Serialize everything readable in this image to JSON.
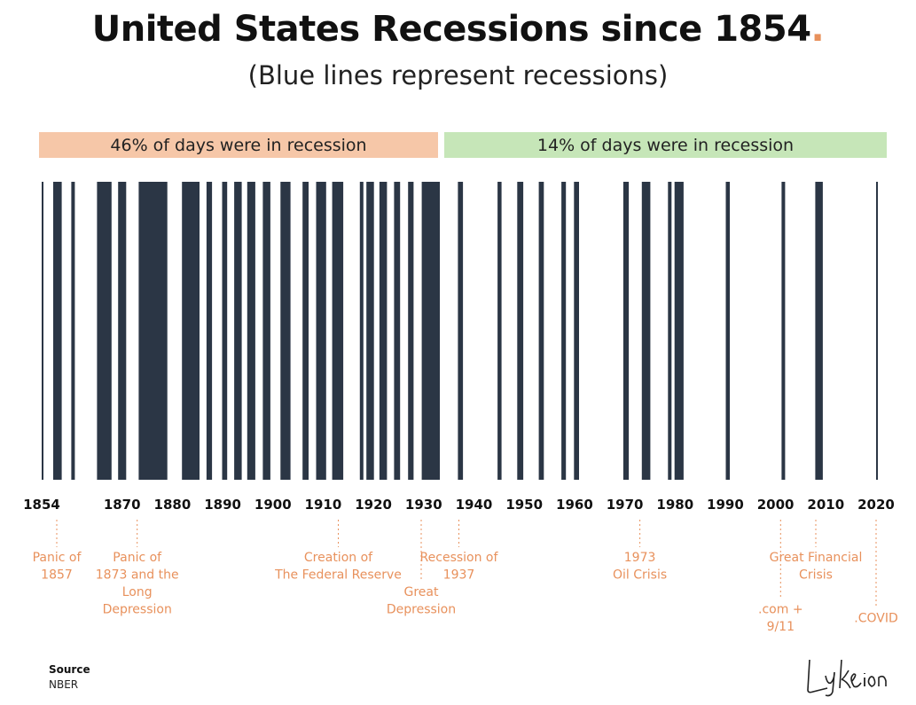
{
  "title_main": "United States Recessions since 1854",
  "title_dot": ".",
  "subtitle": "(Blue lines represent recessions)",
  "colors": {
    "bar": "#2b3645",
    "annotation": "#e8915c",
    "band_early": "#f6c7a8",
    "band_late": "#c6e6b8"
  },
  "bands": [
    {
      "label": "46% of days were in recession",
      "from": 1854,
      "to": 1933
    },
    {
      "label": "14% of days were in recession",
      "from": 1933,
      "to": 2020
    }
  ],
  "chart_data": {
    "type": "bar",
    "title": "United States Recessions since 1854",
    "subtitle": "(Blue lines represent recessions)",
    "xlabel": "",
    "ylabel": "",
    "xlim": [
      1854,
      2021
    ],
    "x_ticks": [
      1854,
      1870,
      1880,
      1890,
      1900,
      1910,
      1920,
      1930,
      1940,
      1950,
      1960,
      1970,
      1980,
      1990,
      2000,
      2010,
      2020
    ],
    "recessions": [
      {
        "start": 1854.0,
        "end": 1854.25
      },
      {
        "start": 1856.3,
        "end": 1858.0
      },
      {
        "start": 1859.9,
        "end": 1860.6
      },
      {
        "start": 1865.0,
        "end": 1867.9
      },
      {
        "start": 1869.2,
        "end": 1870.8
      },
      {
        "start": 1873.3,
        "end": 1879.0
      },
      {
        "start": 1881.9,
        "end": 1885.4
      },
      {
        "start": 1886.8,
        "end": 1887.9
      },
      {
        "start": 1889.9,
        "end": 1890.9
      },
      {
        "start": 1892.3,
        "end": 1893.8
      },
      {
        "start": 1894.9,
        "end": 1896.5
      },
      {
        "start": 1898.0,
        "end": 1899.5
      },
      {
        "start": 1901.5,
        "end": 1903.5
      },
      {
        "start": 1905.9,
        "end": 1907.1
      },
      {
        "start": 1908.6,
        "end": 1910.6
      },
      {
        "start": 1911.8,
        "end": 1914.0
      },
      {
        "start": 1917.3,
        "end": 1918.0
      },
      {
        "start": 1918.6,
        "end": 1920.1
      },
      {
        "start": 1921.2,
        "end": 1922.7
      },
      {
        "start": 1924.1,
        "end": 1925.3
      },
      {
        "start": 1926.9,
        "end": 1928.0
      },
      {
        "start": 1929.6,
        "end": 1933.2
      },
      {
        "start": 1936.8,
        "end": 1937.8
      },
      {
        "start": 1944.7,
        "end": 1945.5
      },
      {
        "start": 1948.6,
        "end": 1949.8
      },
      {
        "start": 1952.9,
        "end": 1953.9
      },
      {
        "start": 1957.4,
        "end": 1958.3
      },
      {
        "start": 1959.9,
        "end": 1960.9
      },
      {
        "start": 1969.7,
        "end": 1970.8
      },
      {
        "start": 1973.4,
        "end": 1975.1
      },
      {
        "start": 1978.6,
        "end": 1979.3
      },
      {
        "start": 1979.9,
        "end": 1981.7
      },
      {
        "start": 1990.1,
        "end": 1990.9
      },
      {
        "start": 2001.2,
        "end": 2001.9
      },
      {
        "start": 2007.9,
        "end": 2009.4
      },
      {
        "start": 2020.0,
        "end": 2020.2
      }
    ],
    "annotations": [
      {
        "year": 1857,
        "lines": [
          "Panic of",
          "1857"
        ],
        "line_offset": 0
      },
      {
        "year": 1873,
        "lines": [
          "Panic of",
          "1873 and the",
          "Long",
          "Depression"
        ],
        "line_offset": 0
      },
      {
        "year": 1913,
        "lines": [
          "Creation of",
          "The Federal Reserve"
        ],
        "line_offset": 0
      },
      {
        "year": 1929.5,
        "lines": [
          "Great",
          "Depression"
        ],
        "line_offset": 2
      },
      {
        "year": 1937,
        "lines": [
          "Recession of",
          "1937"
        ],
        "line_offset": 0
      },
      {
        "year": 1973,
        "lines": [
          "1973",
          "Oil Crisis"
        ],
        "line_offset": 0
      },
      {
        "year": 2001,
        "lines": [
          ".com +",
          "9/11"
        ],
        "line_offset": 3
      },
      {
        "year": 2008,
        "lines": [
          "Great Financial",
          "Crisis"
        ],
        "line_offset": 0
      },
      {
        "year": 2020,
        "lines": [
          ".COVID"
        ],
        "line_offset": 3.5
      }
    ]
  },
  "source_label": "Source",
  "source_value": "NBER",
  "logo_text": "Lykeion"
}
